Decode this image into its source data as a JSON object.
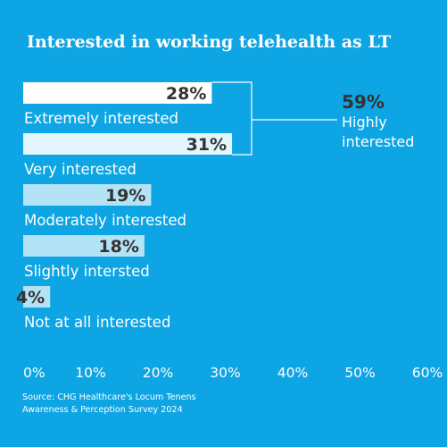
{
  "chart_data": {
    "type": "bar",
    "orientation": "horizontal",
    "title": "Interested in working telehealth as LT",
    "categories": [
      "Extremely interested",
      "Very interested",
      "Moderately interested",
      "Slightly intersted",
      "Not at all interested"
    ],
    "values": [
      28,
      31,
      19,
      18,
      4
    ],
    "value_labels": [
      "28%",
      "31%",
      "19%",
      "18%",
      "4%"
    ],
    "xlim": [
      0,
      60
    ],
    "x_ticks": [
      "0%",
      "10%",
      "20%",
      "30%",
      "40%",
      "50%",
      "60%"
    ],
    "grid": false,
    "legend": "none",
    "annotation": {
      "value": "59%",
      "label_lines": [
        "Highly",
        "interested"
      ],
      "groups": [
        "Extremely interested",
        "Very interested"
      ]
    },
    "source_lines": [
      "Source: CHG Healthcare's Locum Tenens",
      "Awareness & Perception  Survey 2024"
    ]
  },
  "colors": {
    "background": "#0ea5e4",
    "bar_fills": [
      "#ffffff",
      "#e2f4fc",
      "#b5e3f6",
      "#b5e3f6",
      "#b5e3f6"
    ],
    "value_text": "#333333",
    "label_text": "#ffffff"
  }
}
